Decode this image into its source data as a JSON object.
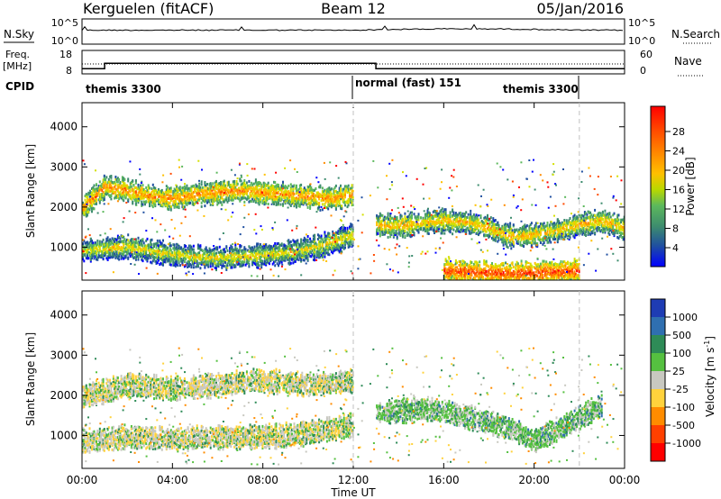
{
  "header": {
    "station": "Kerguelen (fitACF)",
    "beam": "Beam 12",
    "date": "05/Jan/2016"
  },
  "noise_panel": {
    "left_label": "N.Sky",
    "right_label": "N.Search",
    "left_ticks": [
      "10^5",
      "10^0"
    ],
    "right_ticks": [
      "10^5",
      "10^0"
    ]
  },
  "freq_panel": {
    "left_label_1": "Freq.",
    "left_label_2": "[MHz]",
    "left_ticks": [
      "18",
      "8"
    ],
    "right_label": "Nave",
    "right_ticks": [
      "60",
      "0"
    ],
    "cpid_label": "CPID",
    "modes": [
      "themis 3300",
      "normal (fast) 151",
      "themis 3300"
    ]
  },
  "panels": {
    "ylabel": "Slant Range [km]",
    "yticks": [
      "4000",
      "3000",
      "2000",
      "1000"
    ],
    "xticks": [
      "00:00",
      "04:00",
      "08:00",
      "12:00",
      "16:00",
      "20:00",
      "00:00"
    ],
    "xlabel": "Time UT"
  },
  "power_colorbar": {
    "label": "Power [dB]",
    "ticks": [
      "28",
      "24",
      "20",
      "16",
      "12",
      "8",
      "4"
    ],
    "colors": [
      "#ff0000",
      "#ff4a00",
      "#ff8c00",
      "#ffc000",
      "#d4e000",
      "#5cb85c",
      "#3d8c6e",
      "#1f4fa0",
      "#0000ff"
    ]
  },
  "velocity_colorbar": {
    "label": "Velocity [m s",
    "label_sup": "-1",
    "label_end": "]",
    "ticks": [
      "1000",
      "500",
      "100",
      "25",
      "-25",
      "-100",
      "-500",
      "-1000"
    ],
    "colors": [
      "#1e3cb4",
      "#2f6fb0",
      "#2e8b57",
      "#55c040",
      "#c8c8c0",
      "#ffd23c",
      "#ff8c00",
      "#ff4000",
      "#ff0000"
    ]
  },
  "chart_data": {
    "type": "heatmap",
    "title": "Kerguelen (fitACF)  Beam 12  05/Jan/2016",
    "xlabel": "Time UT",
    "ylabel": "Slant Range [km]",
    "xlim_hours": [
      0,
      24
    ],
    "ylim_km": [
      180,
      4600
    ],
    "xticks": [
      "00:00",
      "04:00",
      "08:00",
      "12:00",
      "16:00",
      "20:00",
      "00:00"
    ],
    "yticks": [
      1000,
      2000,
      3000,
      4000
    ],
    "frequency_MHz": {
      "segments": [
        {
          "t0": 0,
          "t1": 1.0,
          "value": 10
        },
        {
          "t0": 1.0,
          "t1": 13.0,
          "value": 12.5
        },
        {
          "t0": 13.0,
          "t1": 24,
          "value": 10
        }
      ]
    },
    "cpid_modes": [
      {
        "name": "themis 3300",
        "t0": 0,
        "t1": 12.0
      },
      {
        "name": "normal (fast) 151",
        "t0": 12.0,
        "t1": 22.0
      },
      {
        "name": "themis 3300",
        "t0": 22.0,
        "t1": 24
      }
    ],
    "power_bands": [
      {
        "times": [
          0,
          1,
          2,
          3,
          4,
          5,
          6,
          7,
          8,
          9,
          10,
          11,
          12
        ],
        "ranges": [
          2000,
          2550,
          2450,
          2300,
          2250,
          2350,
          2400,
          2450,
          2400,
          2350,
          2300,
          2250,
          2350
        ],
        "dB": 22
      },
      {
        "times": [
          0,
          1,
          2,
          3,
          4,
          5,
          6,
          7,
          8,
          9,
          10,
          11,
          12
        ],
        "ranges": [
          950,
          1000,
          1050,
          950,
          850,
          800,
          780,
          800,
          850,
          900,
          1000,
          1150,
          1350
        ],
        "dB": 18
      },
      {
        "times": [
          13,
          14,
          15,
          16,
          17,
          18,
          19,
          20,
          21,
          22,
          23,
          24
        ],
        "ranges": [
          1600,
          1550,
          1650,
          1700,
          1650,
          1500,
          1300,
          1350,
          1450,
          1600,
          1700,
          1500
        ],
        "dB": 20
      },
      {
        "times": [
          16,
          17,
          18,
          19,
          20,
          21,
          22
        ],
        "ranges": [
          450,
          420,
          400,
          380,
          400,
          420,
          450
        ],
        "dB": 26
      }
    ],
    "velocity_bands": [
      {
        "times": [
          0,
          2,
          4,
          6,
          8,
          10,
          12
        ],
        "ranges": [
          2000,
          2300,
          2200,
          2300,
          2400,
          2300,
          2400
        ],
        "m_s": 0
      },
      {
        "times": [
          0,
          2,
          4,
          6,
          8,
          10,
          12
        ],
        "ranges": [
          900,
          1000,
          950,
          1000,
          1000,
          1100,
          1300
        ],
        "m_s": 0
      },
      {
        "times": [
          13,
          15,
          17,
          19,
          20,
          21,
          23
        ],
        "ranges": [
          1600,
          1700,
          1500,
          1200,
          900,
          1200,
          1800
        ],
        "m_s": 50
      }
    ]
  }
}
